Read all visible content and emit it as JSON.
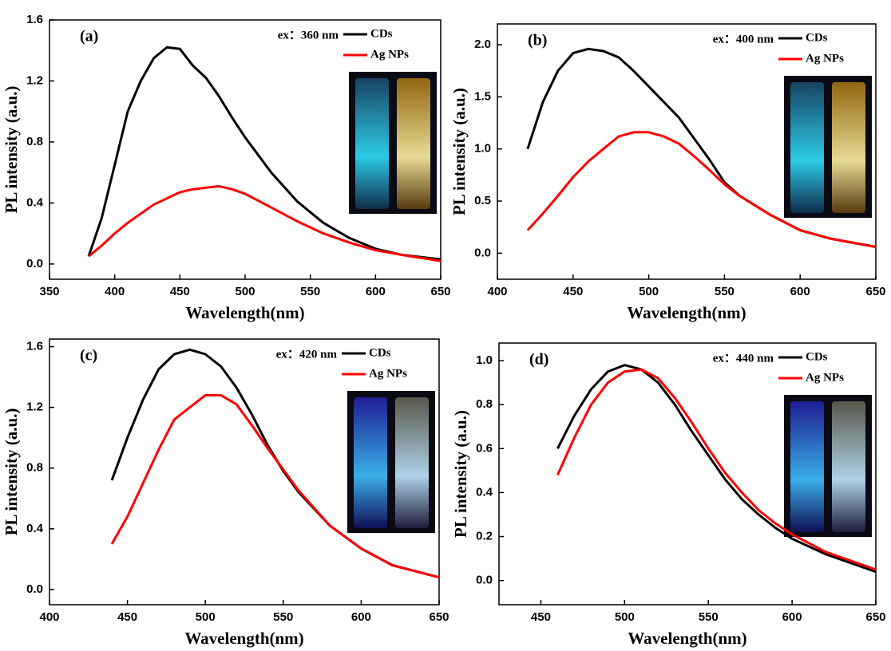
{
  "chart_data": [
    {
      "type": "line",
      "title": "(a)",
      "annotation": "ex：360 nm",
      "xlabel": "Wavelength(nm)",
      "ylabel": "PL intensity (a.u.)",
      "xlim": [
        350,
        650
      ],
      "ylim": [
        -0.1,
        1.6
      ],
      "xticks": [
        350,
        400,
        450,
        500,
        550,
        600,
        650
      ],
      "yticks": [
        {
          "value": 0,
          "label": "0.0"
        },
        0.4,
        0.8,
        1.2,
        1.6
      ],
      "legend": "upper right",
      "x": [
        380,
        390,
        400,
        410,
        420,
        430,
        440,
        450,
        460,
        470,
        480,
        490,
        500,
        520,
        540,
        560,
        580,
        600,
        620,
        650
      ],
      "series": [
        {
          "name": "CDs",
          "color": "#000000",
          "values": [
            0.05,
            0.3,
            0.65,
            1.0,
            1.2,
            1.35,
            1.42,
            1.41,
            1.3,
            1.22,
            1.1,
            0.96,
            0.83,
            0.6,
            0.41,
            0.27,
            0.17,
            0.1,
            0.06,
            0.03
          ]
        },
        {
          "name": "Ag NPs",
          "color": "#ff0000",
          "values": [
            0.05,
            0.12,
            0.2,
            0.27,
            0.33,
            0.39,
            0.43,
            0.47,
            0.49,
            0.5,
            0.51,
            0.49,
            0.46,
            0.37,
            0.28,
            0.2,
            0.14,
            0.09,
            0.06,
            0.02
          ]
        }
      ]
    },
    {
      "type": "line",
      "title": "(b)",
      "annotation": "ex：400 nm",
      "xlabel": "Wavelength(nm)",
      "ylabel": "PL intensity (a.u.)",
      "xlim": [
        400,
        650
      ],
      "ylim": [
        -0.25,
        2.2
      ],
      "xticks": [
        400,
        450,
        500,
        550,
        600,
        650
      ],
      "yticks": [
        {
          "value": 0,
          "label": "0.0"
        },
        0.5,
        {
          "value": 1,
          "label": "1.0"
        },
        1.5,
        {
          "value": 2,
          "label": "2.0"
        }
      ],
      "legend": "upper right",
      "x": [
        420,
        430,
        440,
        450,
        460,
        470,
        480,
        490,
        500,
        510,
        520,
        530,
        540,
        550,
        560,
        580,
        600,
        620,
        650
      ],
      "series": [
        {
          "name": "CDs",
          "color": "#000000",
          "values": [
            1.0,
            1.45,
            1.75,
            1.92,
            1.96,
            1.94,
            1.88,
            1.75,
            1.6,
            1.45,
            1.3,
            1.1,
            0.9,
            0.68,
            0.55,
            0.37,
            0.22,
            0.14,
            0.06
          ]
        },
        {
          "name": "Ag NPs",
          "color": "#ff0000",
          "values": [
            0.22,
            0.38,
            0.55,
            0.73,
            0.88,
            1.0,
            1.12,
            1.16,
            1.16,
            1.12,
            1.05,
            0.93,
            0.8,
            0.66,
            0.55,
            0.37,
            0.22,
            0.14,
            0.06
          ]
        }
      ]
    },
    {
      "type": "line",
      "title": "(c)",
      "annotation": "ex：420 nm",
      "xlabel": "Wavelength(nm)",
      "ylabel": "PL intensity (a.u.)",
      "xlim": [
        400,
        650
      ],
      "ylim": [
        -0.1,
        1.65
      ],
      "xticks": [
        400,
        450,
        500,
        550,
        600,
        650
      ],
      "yticks": [
        {
          "value": 0,
          "label": "0.0"
        },
        0.4,
        0.8,
        1.2,
        1.6
      ],
      "legend": "upper right",
      "x": [
        440,
        450,
        460,
        470,
        480,
        490,
        500,
        510,
        520,
        530,
        540,
        550,
        560,
        580,
        600,
        620,
        650
      ],
      "series": [
        {
          "name": "CDs",
          "color": "#000000",
          "values": [
            0.72,
            1.0,
            1.25,
            1.45,
            1.55,
            1.58,
            1.55,
            1.47,
            1.33,
            1.15,
            0.95,
            0.78,
            0.64,
            0.42,
            0.27,
            0.16,
            0.08
          ]
        },
        {
          "name": "Ag NPs",
          "color": "#ff0000",
          "values": [
            0.3,
            0.48,
            0.7,
            0.92,
            1.12,
            1.2,
            1.28,
            1.28,
            1.22,
            1.08,
            0.93,
            0.79,
            0.65,
            0.42,
            0.27,
            0.16,
            0.08
          ]
        }
      ]
    },
    {
      "type": "line",
      "title": "(d)",
      "annotation": "ex：440 nm",
      "xlabel": "Wavelength(nm)",
      "ylabel": "PL intensity (a.u.)",
      "xlim": [
        425,
        650
      ],
      "ylim": [
        -0.11,
        1.08
      ],
      "xticks": [
        450,
        500,
        550,
        600,
        650
      ],
      "yticks": [
        {
          "value": 0,
          "label": "0.0"
        },
        0.2,
        0.4,
        0.6,
        0.8,
        {
          "value": 1,
          "label": "1.0"
        }
      ],
      "legend": "upper right",
      "x": [
        460,
        470,
        480,
        490,
        500,
        510,
        520,
        530,
        540,
        550,
        560,
        570,
        580,
        590,
        600,
        620,
        650
      ],
      "series": [
        {
          "name": "CDs",
          "color": "#000000",
          "values": [
            0.6,
            0.75,
            0.87,
            0.95,
            0.98,
            0.96,
            0.9,
            0.8,
            0.68,
            0.57,
            0.46,
            0.37,
            0.3,
            0.24,
            0.19,
            0.12,
            0.04
          ]
        },
        {
          "name": "Ag NPs",
          "color": "#ff0000",
          "values": [
            0.48,
            0.65,
            0.8,
            0.9,
            0.95,
            0.96,
            0.92,
            0.83,
            0.72,
            0.6,
            0.49,
            0.4,
            0.32,
            0.26,
            0.21,
            0.13,
            0.05
          ]
        }
      ]
    }
  ]
}
